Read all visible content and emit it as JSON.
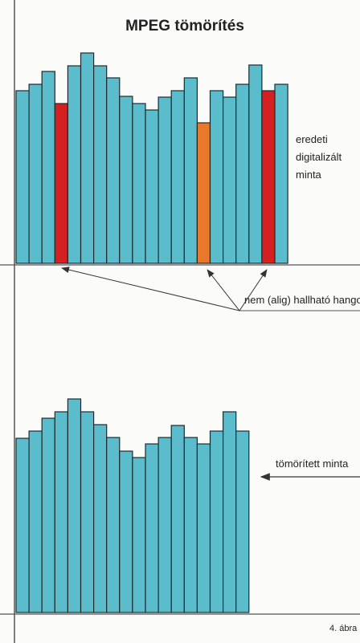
{
  "title": "MPEG tömörítés",
  "original_label": [
    "eredeti",
    "digitalizált",
    "minta"
  ],
  "inaudible_label": "nem (alig) hallható hangok",
  "compressed_label": "tömörített minta",
  "figure_label": "4. ábra"
}
